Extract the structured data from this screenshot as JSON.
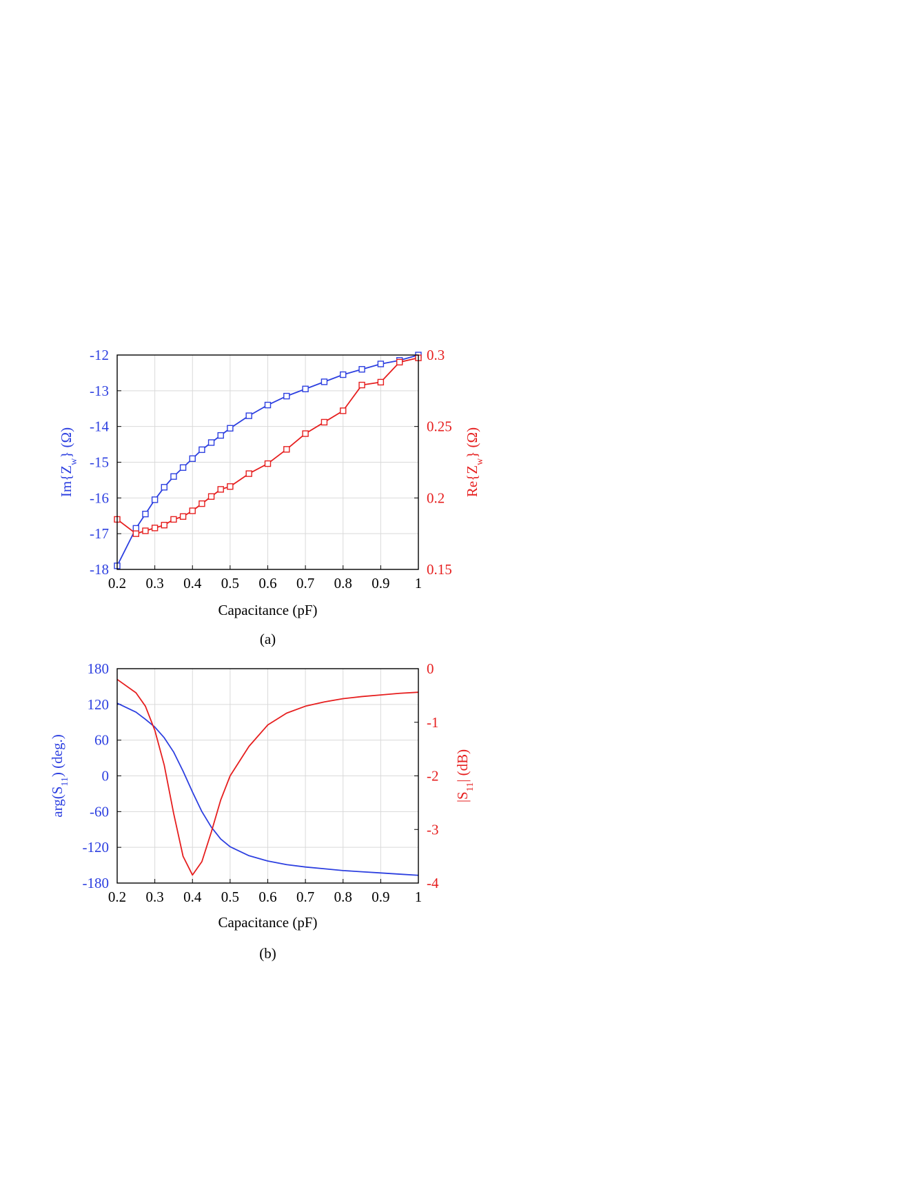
{
  "chart_data": [
    {
      "type": "line",
      "caption": "(a)",
      "xlabel": "Capacitance (pF)",
      "xlim": [
        0.2,
        1
      ],
      "xticks": [
        "0.2",
        "0.3",
        "0.4",
        "0.5",
        "0.6",
        "0.7",
        "0.8",
        "0.9",
        "1"
      ],
      "grid": true,
      "markers": "square",
      "left_axis": {
        "label_main": "Im{Z",
        "label_sub": "w",
        "label_tail": "} (Ω)",
        "color": "#2c3fe0",
        "ylim": [
          -18,
          -12
        ],
        "yticks": [
          "-18",
          "-17",
          "-16",
          "-15",
          "-14",
          "-13",
          "-12"
        ]
      },
      "right_axis": {
        "label_main": "Re{Z",
        "label_sub": "w",
        "label_tail": "} (Ω)",
        "color": "#e61e1e",
        "ylim": [
          0.15,
          0.3
        ],
        "yticks": [
          "0.15",
          "0.2",
          "0.25",
          "0.3"
        ]
      },
      "series": [
        {
          "axis": "left",
          "color": "#2c3fe0",
          "x": [
            0.2,
            0.25,
            0.275,
            0.3,
            0.325,
            0.35,
            0.375,
            0.4,
            0.425,
            0.45,
            0.475,
            0.5,
            0.55,
            0.6,
            0.65,
            0.7,
            0.75,
            0.8,
            0.85,
            0.9,
            0.95,
            1.0
          ],
          "y": [
            -17.9,
            -16.85,
            -16.45,
            -16.05,
            -15.7,
            -15.4,
            -15.15,
            -14.9,
            -14.65,
            -14.45,
            -14.25,
            -14.05,
            -13.7,
            -13.4,
            -13.15,
            -12.95,
            -12.75,
            -12.55,
            -12.4,
            -12.25,
            -12.15,
            -12.0
          ]
        },
        {
          "axis": "right",
          "color": "#e61e1e",
          "x": [
            0.2,
            0.25,
            0.275,
            0.3,
            0.325,
            0.35,
            0.375,
            0.4,
            0.425,
            0.45,
            0.475,
            0.5,
            0.55,
            0.6,
            0.65,
            0.7,
            0.75,
            0.8,
            0.85,
            0.9,
            0.95,
            1.0
          ],
          "y": [
            0.185,
            0.175,
            0.177,
            0.179,
            0.181,
            0.185,
            0.187,
            0.191,
            0.196,
            0.201,
            0.206,
            0.208,
            0.217,
            0.224,
            0.234,
            0.245,
            0.253,
            0.261,
            0.279,
            0.281,
            0.295,
            0.298
          ]
        }
      ]
    },
    {
      "type": "line",
      "caption": "(b)",
      "xlabel": "Capacitance (pF)",
      "xlim": [
        0.2,
        1
      ],
      "xticks": [
        "0.2",
        "0.3",
        "0.4",
        "0.5",
        "0.6",
        "0.7",
        "0.8",
        "0.9",
        "1"
      ],
      "grid": true,
      "markers": "none",
      "left_axis": {
        "label_main": "arg(S",
        "label_sub": "11",
        "label_tail": ") (deg.)",
        "color": "#2c3fe0",
        "ylim": [
          -180,
          180
        ],
        "yticks": [
          "-180",
          "-120",
          "-60",
          "0",
          "60",
          "120",
          "180"
        ]
      },
      "right_axis": {
        "label_main": "|S",
        "label_sub": "11",
        "label_tail": "| (dB)",
        "color": "#e61e1e",
        "ylim": [
          -4,
          0
        ],
        "yticks": [
          "-4",
          "-3",
          "-2",
          "-1",
          "0"
        ]
      },
      "series": [
        {
          "axis": "left",
          "color": "#2c3fe0",
          "x": [
            0.2,
            0.25,
            0.275,
            0.3,
            0.325,
            0.35,
            0.375,
            0.4,
            0.425,
            0.45,
            0.475,
            0.5,
            0.55,
            0.6,
            0.65,
            0.7,
            0.75,
            0.8,
            0.85,
            0.9,
            0.95,
            1.0
          ],
          "y": [
            122,
            107,
            95,
            82,
            64,
            40,
            8,
            -27,
            -60,
            -86,
            -106,
            -119,
            -134,
            -143,
            -149,
            -153,
            -156,
            -159,
            -161,
            -163,
            -165,
            -167
          ]
        },
        {
          "axis": "right",
          "color": "#e61e1e",
          "x": [
            0.2,
            0.25,
            0.275,
            0.3,
            0.325,
            0.35,
            0.375,
            0.4,
            0.425,
            0.45,
            0.475,
            0.5,
            0.55,
            0.6,
            0.65,
            0.7,
            0.75,
            0.8,
            0.85,
            0.9,
            0.95,
            1.0
          ],
          "y": [
            -0.2,
            -0.45,
            -0.7,
            -1.15,
            -1.8,
            -2.7,
            -3.5,
            -3.85,
            -3.6,
            -3.05,
            -2.45,
            -2.0,
            -1.45,
            -1.05,
            -0.83,
            -0.7,
            -0.62,
            -0.56,
            -0.52,
            -0.49,
            -0.46,
            -0.44
          ]
        }
      ]
    }
  ]
}
